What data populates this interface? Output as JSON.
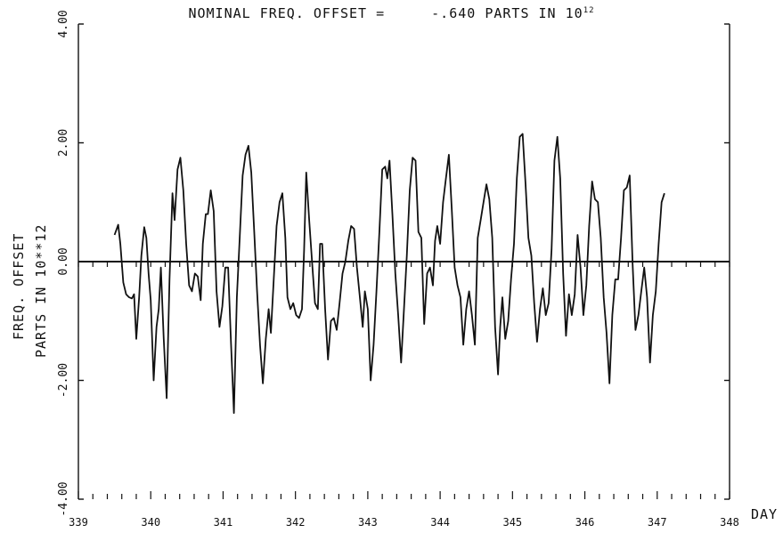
{
  "title": {
    "label": "NOMINAL FREQ. OFFSET =",
    "value": "-.640",
    "unit": "PARTS IN 10",
    "exponent": "12"
  },
  "ylabel_line1": "FREQ. OFFSET",
  "ylabel_line2": "PARTS IN 10**12",
  "xlabel": "DAY",
  "chart_data": {
    "type": "line",
    "title": "NOMINAL FREQ. OFFSET = -.640 PARTS IN 10^12",
    "xlabel": "DAY",
    "ylabel": "FREQ. OFFSET PARTS IN 10**12",
    "xlim": [
      339,
      348
    ],
    "ylim": [
      -4.0,
      4.0
    ],
    "x_ticks": [
      "339",
      "340",
      "341",
      "342",
      "343",
      "344",
      "345",
      "346",
      "347",
      "348"
    ],
    "y_ticks": [
      "4.00",
      "2.00",
      "0.00",
      "-2.00",
      "-4.00"
    ],
    "grid": false,
    "series": [
      {
        "values": [
          [
            339.5,
            0.45
          ],
          [
            339.55,
            0.62
          ],
          [
            339.58,
            0.3
          ],
          [
            339.62,
            -0.35
          ],
          [
            339.66,
            -0.55
          ],
          [
            339.7,
            -0.6
          ],
          [
            339.74,
            -0.62
          ],
          [
            339.77,
            -0.55
          ],
          [
            339.8,
            -1.3
          ],
          [
            339.84,
            -0.6
          ],
          [
            339.87,
            0.1
          ],
          [
            339.91,
            0.58
          ],
          [
            339.94,
            0.4
          ],
          [
            339.97,
            -0.2
          ],
          [
            340.0,
            -0.65
          ],
          [
            340.04,
            -2.0
          ],
          [
            340.08,
            -1.1
          ],
          [
            340.11,
            -0.8
          ],
          [
            340.14,
            -0.1
          ],
          [
            340.18,
            -1.3
          ],
          [
            340.22,
            -2.3
          ],
          [
            340.26,
            -0.3
          ],
          [
            340.3,
            1.15
          ],
          [
            340.33,
            0.7
          ],
          [
            340.37,
            1.55
          ],
          [
            340.41,
            1.75
          ],
          [
            340.45,
            1.2
          ],
          [
            340.49,
            0.3
          ],
          [
            340.53,
            -0.4
          ],
          [
            340.57,
            -0.5
          ],
          [
            340.61,
            -0.2
          ],
          [
            340.65,
            -0.25
          ],
          [
            340.69,
            -0.65
          ],
          [
            340.72,
            0.3
          ],
          [
            340.76,
            0.8
          ],
          [
            340.79,
            0.8
          ],
          [
            340.83,
            1.2
          ],
          [
            340.87,
            0.85
          ],
          [
            340.91,
            -0.5
          ],
          [
            340.95,
            -1.1
          ],
          [
            340.99,
            -0.75
          ],
          [
            341.03,
            -0.1
          ],
          [
            341.07,
            -0.1
          ],
          [
            341.11,
            -1.4
          ],
          [
            341.15,
            -2.55
          ],
          [
            341.19,
            -0.6
          ],
          [
            341.23,
            0.4
          ],
          [
            341.27,
            1.45
          ],
          [
            341.31,
            1.8
          ],
          [
            341.35,
            1.95
          ],
          [
            341.39,
            1.5
          ],
          [
            341.43,
            0.5
          ],
          [
            341.47,
            -0.5
          ],
          [
            341.51,
            -1.4
          ],
          [
            341.55,
            -2.05
          ],
          [
            341.59,
            -1.3
          ],
          [
            341.63,
            -0.8
          ],
          [
            341.66,
            -1.2
          ],
          [
            341.7,
            -0.3
          ],
          [
            341.74,
            0.6
          ],
          [
            341.78,
            1.0
          ],
          [
            341.82,
            1.15
          ],
          [
            341.86,
            0.4
          ],
          [
            341.89,
            -0.6
          ],
          [
            341.93,
            -0.8
          ],
          [
            341.97,
            -0.7
          ],
          [
            342.01,
            -0.9
          ],
          [
            342.05,
            -0.95
          ],
          [
            342.09,
            -0.8
          ],
          [
            342.12,
            0.2
          ],
          [
            342.15,
            1.5
          ],
          [
            342.19,
            0.7
          ],
          [
            342.23,
            0.0
          ],
          [
            342.27,
            -0.7
          ],
          [
            342.31,
            -0.8
          ],
          [
            342.34,
            0.3
          ],
          [
            342.37,
            0.3
          ],
          [
            342.41,
            -0.8
          ],
          [
            342.45,
            -1.65
          ],
          [
            342.49,
            -1.0
          ],
          [
            342.53,
            -0.95
          ],
          [
            342.57,
            -1.15
          ],
          [
            342.61,
            -0.7
          ],
          [
            342.65,
            -0.2
          ],
          [
            342.69,
            0.0
          ],
          [
            342.73,
            0.35
          ],
          [
            342.77,
            0.6
          ],
          [
            342.81,
            0.55
          ],
          [
            342.85,
            -0.1
          ],
          [
            342.89,
            -0.6
          ],
          [
            342.93,
            -1.1
          ],
          [
            342.96,
            -0.5
          ],
          [
            343.0,
            -0.8
          ],
          [
            343.04,
            -2.0
          ],
          [
            343.08,
            -1.4
          ],
          [
            343.12,
            -0.5
          ],
          [
            343.16,
            0.5
          ],
          [
            343.2,
            1.55
          ],
          [
            343.24,
            1.6
          ],
          [
            343.27,
            1.4
          ],
          [
            343.3,
            1.7
          ],
          [
            343.34,
            0.8
          ],
          [
            343.38,
            -0.2
          ],
          [
            343.42,
            -0.9
          ],
          [
            343.46,
            -1.7
          ],
          [
            343.5,
            -0.8
          ],
          [
            343.54,
            0.1
          ],
          [
            343.58,
            1.2
          ],
          [
            343.62,
            1.75
          ],
          [
            343.66,
            1.7
          ],
          [
            343.7,
            0.5
          ],
          [
            343.74,
            0.4
          ],
          [
            343.78,
            -1.05
          ],
          [
            343.82,
            -0.2
          ],
          [
            343.86,
            -0.1
          ],
          [
            343.9,
            -0.4
          ],
          [
            343.93,
            0.35
          ],
          [
            343.96,
            0.6
          ],
          [
            344.0,
            0.3
          ],
          [
            344.04,
            1.0
          ],
          [
            344.08,
            1.4
          ],
          [
            344.12,
            1.8
          ],
          [
            344.16,
            0.9
          ],
          [
            344.2,
            -0.1
          ],
          [
            344.24,
            -0.4
          ],
          [
            344.28,
            -0.6
          ],
          [
            344.32,
            -1.4
          ],
          [
            344.36,
            -0.8
          ],
          [
            344.4,
            -0.5
          ],
          [
            344.44,
            -0.9
          ],
          [
            344.48,
            -1.4
          ],
          [
            344.52,
            0.4
          ],
          [
            344.56,
            0.7
          ],
          [
            344.6,
            1.0
          ],
          [
            344.64,
            1.3
          ],
          [
            344.68,
            1.05
          ],
          [
            344.72,
            0.4
          ],
          [
            344.76,
            -1.1
          ],
          [
            344.8,
            -1.9
          ],
          [
            344.83,
            -1.1
          ],
          [
            344.86,
            -0.6
          ],
          [
            344.9,
            -1.3
          ],
          [
            344.94,
            -1.0
          ],
          [
            344.98,
            -0.3
          ],
          [
            345.02,
            0.3
          ],
          [
            345.06,
            1.4
          ],
          [
            345.1,
            2.1
          ],
          [
            345.14,
            2.15
          ],
          [
            345.18,
            1.3
          ],
          [
            345.22,
            0.4
          ],
          [
            345.26,
            0.1
          ],
          [
            345.3,
            -0.7
          ],
          [
            345.34,
            -1.35
          ],
          [
            345.38,
            -0.8
          ],
          [
            345.42,
            -0.45
          ],
          [
            345.46,
            -0.9
          ],
          [
            345.5,
            -0.7
          ],
          [
            345.54,
            0.2
          ],
          [
            345.58,
            1.7
          ],
          [
            345.62,
            2.1
          ],
          [
            345.66,
            1.4
          ],
          [
            345.7,
            -0.2
          ],
          [
            345.74,
            -1.25
          ],
          [
            345.78,
            -0.55
          ],
          [
            345.82,
            -0.9
          ],
          [
            345.86,
            -0.55
          ],
          [
            345.9,
            0.45
          ],
          [
            345.94,
            -0.1
          ],
          [
            345.98,
            -0.9
          ],
          [
            346.02,
            -0.4
          ],
          [
            346.06,
            0.6
          ],
          [
            346.1,
            1.35
          ],
          [
            346.14,
            1.05
          ],
          [
            346.18,
            1.0
          ],
          [
            346.22,
            0.4
          ],
          [
            346.26,
            -0.6
          ],
          [
            346.3,
            -1.2
          ],
          [
            346.34,
            -2.05
          ],
          [
            346.38,
            -0.9
          ],
          [
            346.42,
            -0.3
          ],
          [
            346.46,
            -0.3
          ],
          [
            346.5,
            0.4
          ],
          [
            346.54,
            1.2
          ],
          [
            346.58,
            1.25
          ],
          [
            346.62,
            1.45
          ],
          [
            346.66,
            -0.05
          ],
          [
            346.7,
            -1.15
          ],
          [
            346.74,
            -0.9
          ],
          [
            346.78,
            -0.5
          ],
          [
            346.82,
            -0.1
          ],
          [
            346.86,
            -0.6
          ],
          [
            346.9,
            -1.7
          ],
          [
            346.94,
            -0.9
          ],
          [
            346.98,
            -0.5
          ],
          [
            347.02,
            0.3
          ],
          [
            347.06,
            1.0
          ],
          [
            347.1,
            1.15
          ]
        ]
      }
    ]
  }
}
